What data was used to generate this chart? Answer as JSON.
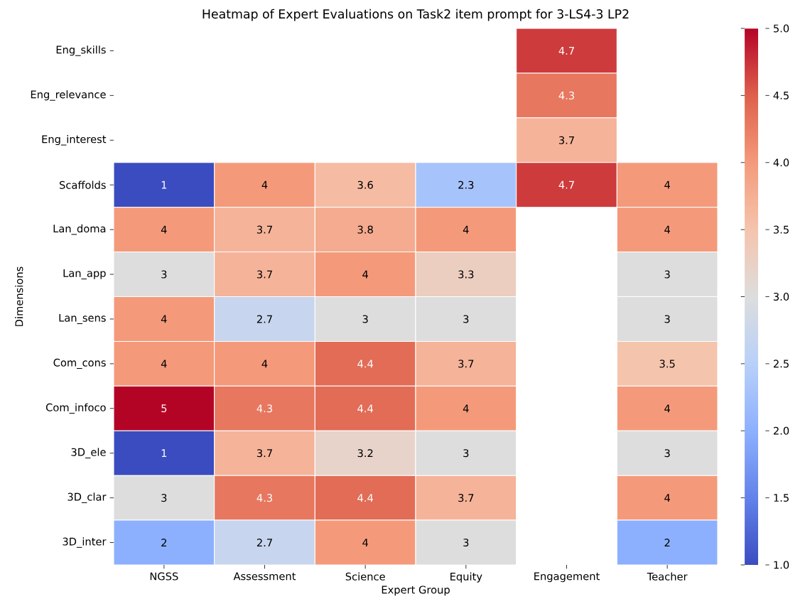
{
  "chart_data": {
    "type": "heatmap",
    "title": "Heatmap of Expert Evaluations on Task2 item prompt for 3-LS4-3 LP2",
    "xlabel": "Expert Group",
    "ylabel": "Dimensions",
    "categories": [
      "NGSS",
      "Assessment",
      "Science",
      "Equity",
      "Engagement",
      "Teacher"
    ],
    "y_categories": [
      "Eng_skills",
      "Eng_relevance",
      "Eng_interest",
      "Scaffolds",
      "Lan_doma",
      "Lan_app",
      "Lan_sens",
      "Com_cons",
      "Com_infoco",
      "3D_ele",
      "3D_clar",
      "3D_inter"
    ],
    "cells": [
      [
        null,
        null,
        null,
        null,
        4.7,
        null
      ],
      [
        null,
        null,
        null,
        null,
        4.3,
        null
      ],
      [
        null,
        null,
        null,
        null,
        3.7,
        null
      ],
      [
        1,
        4,
        3.6,
        2.3,
        4.7,
        4
      ],
      [
        4,
        3.7,
        3.8,
        4,
        null,
        4
      ],
      [
        3,
        3.7,
        4,
        3.3,
        null,
        3
      ],
      [
        4,
        2.7,
        3,
        3,
        null,
        3
      ],
      [
        4,
        4,
        4.4,
        3.7,
        null,
        3.5
      ],
      [
        5,
        4.3,
        4.4,
        4,
        null,
        4
      ],
      [
        1,
        3.7,
        3.2,
        3,
        null,
        3
      ],
      [
        3,
        4.3,
        4.4,
        3.7,
        null,
        4
      ],
      [
        2,
        2.7,
        4,
        3,
        null,
        2
      ]
    ],
    "clim": [
      1,
      5
    ],
    "cticks": [
      {
        "value": 1,
        "label": "1.0"
      },
      {
        "value": 1.5,
        "label": "1.5"
      },
      {
        "value": 2,
        "label": "2.0"
      },
      {
        "value": 2.5,
        "label": "2.5"
      },
      {
        "value": 3,
        "label": "3.0"
      },
      {
        "value": 3.5,
        "label": "3.5"
      },
      {
        "value": 4,
        "label": "4.0"
      },
      {
        "value": 4.5,
        "label": "4.5"
      },
      {
        "value": 5,
        "label": "5.0"
      }
    ],
    "data_labels": true
  }
}
